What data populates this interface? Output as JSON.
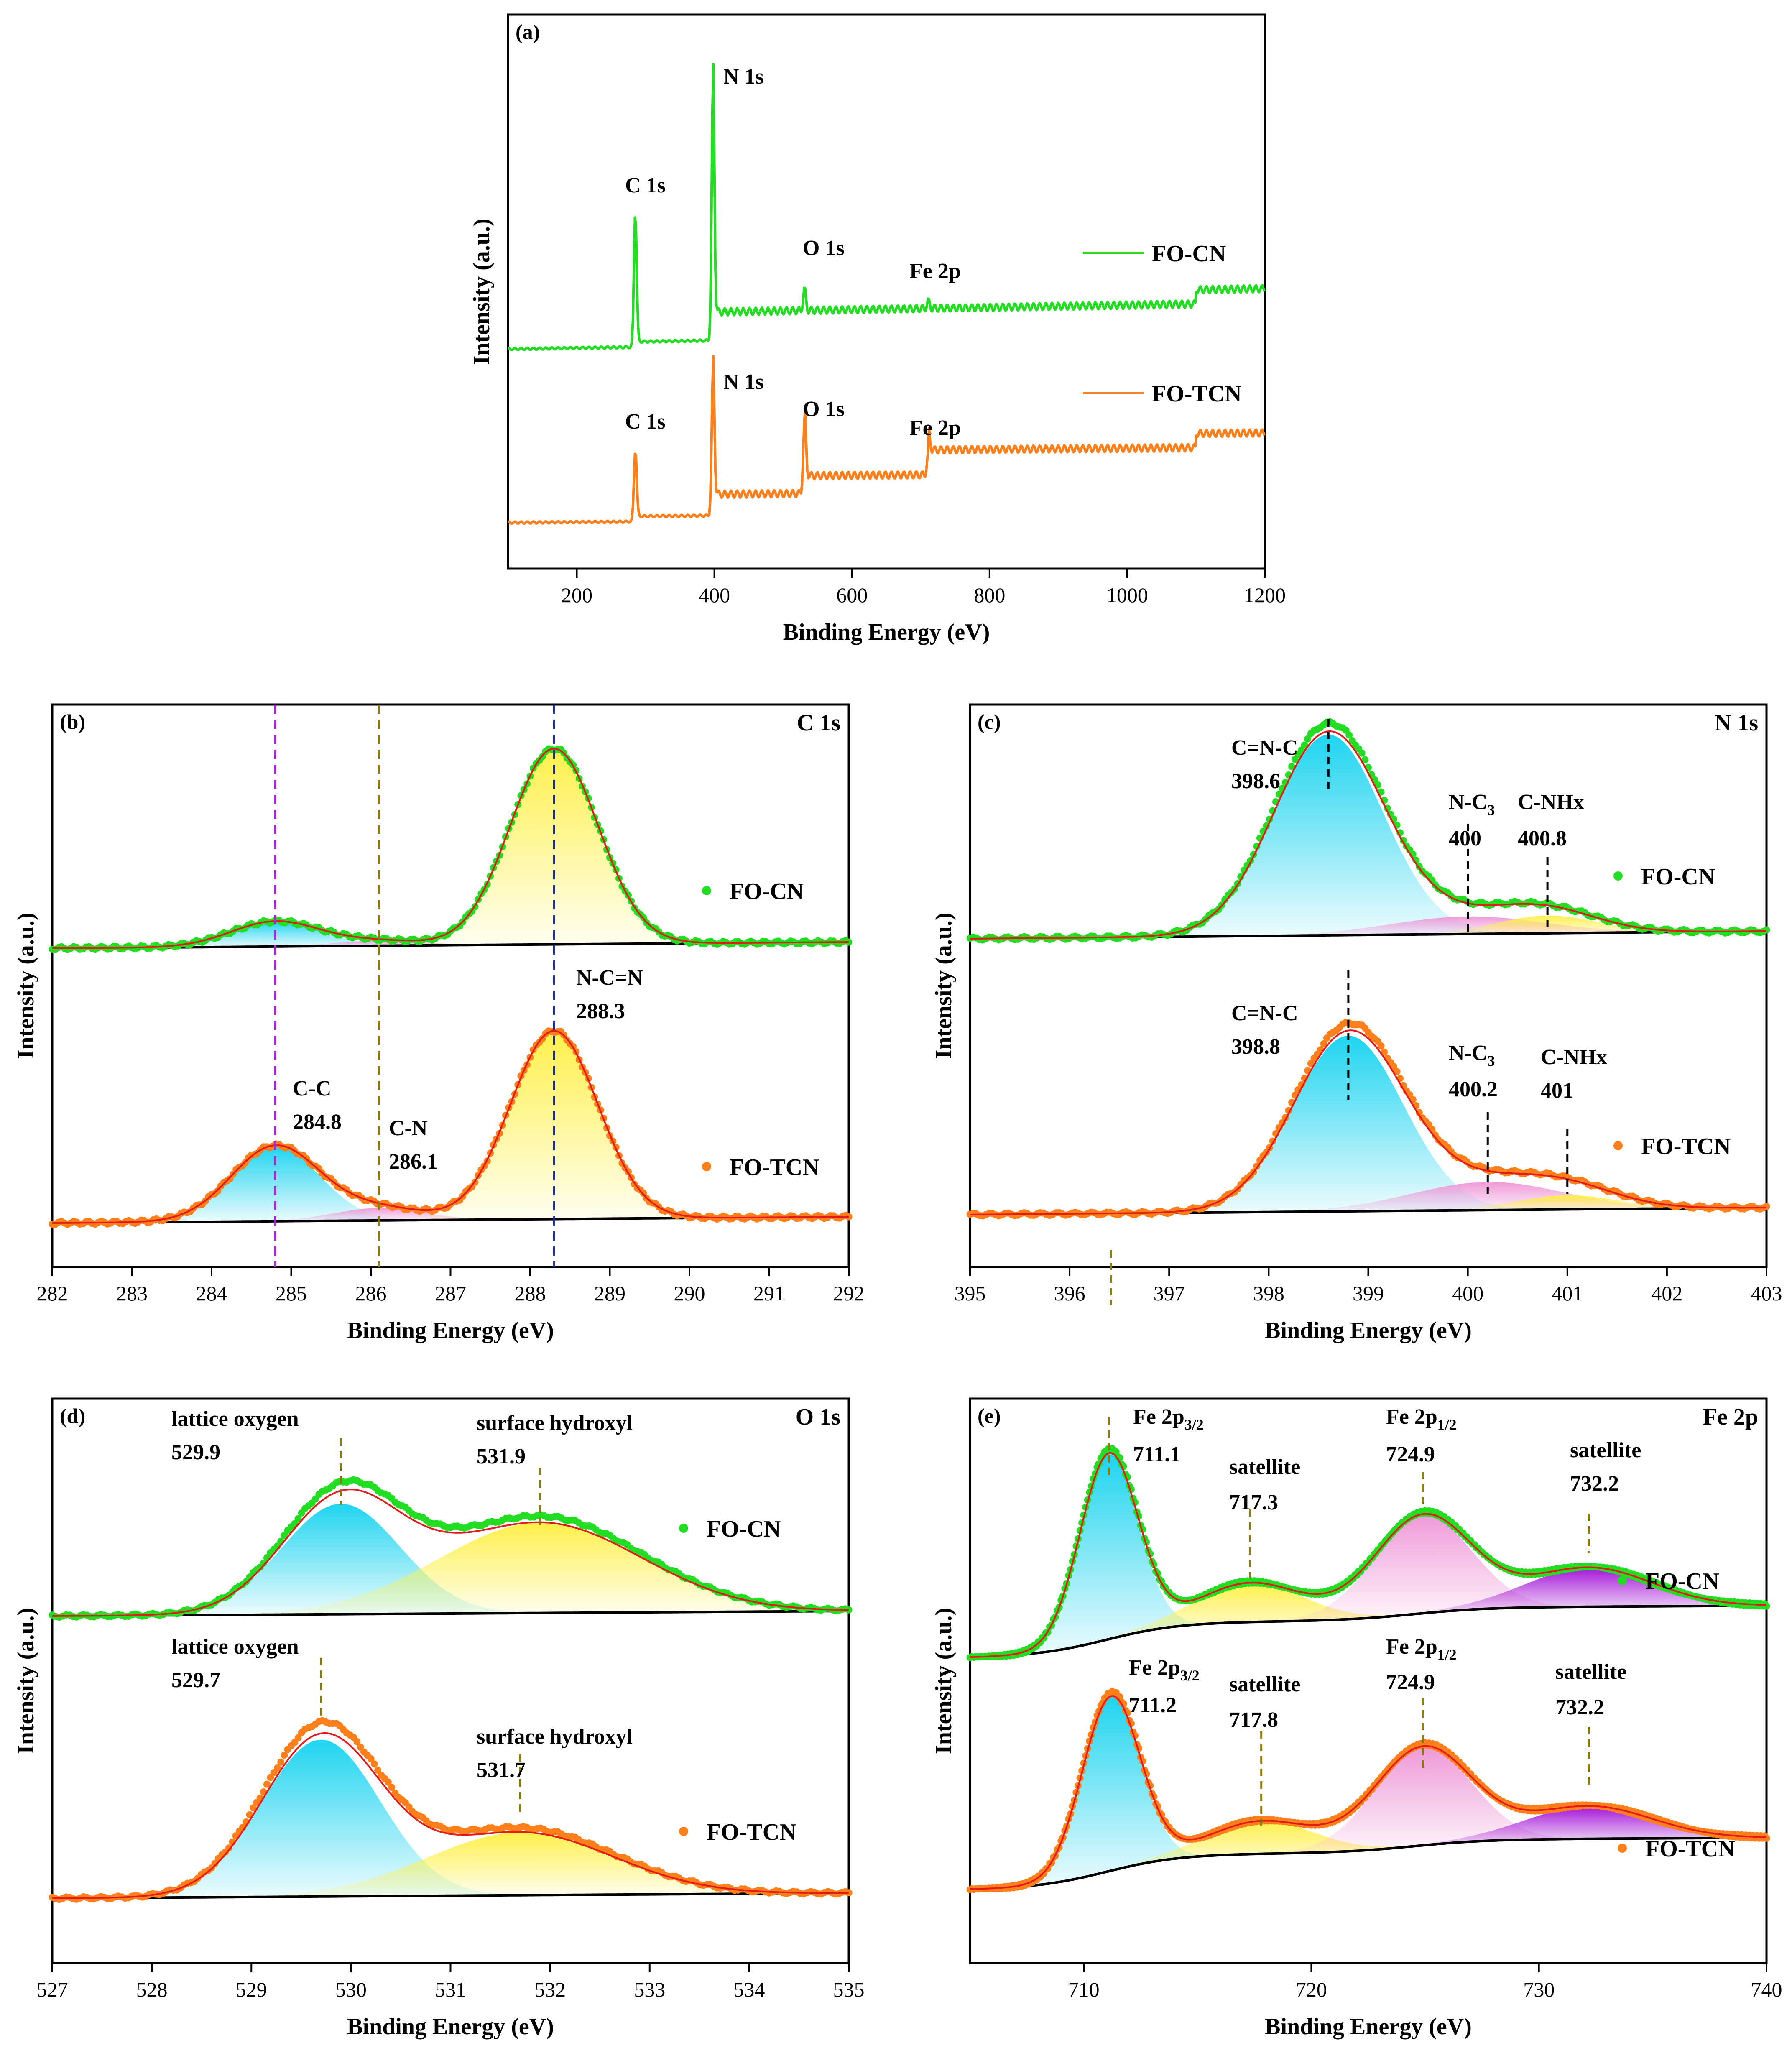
{
  "colors": {
    "green": "#22dd22",
    "orange": "#ff7f1a",
    "fit": "#e51a1a",
    "base": "#000000",
    "cyan": "#1ed4f0",
    "yellow": "#fff04a",
    "pink": "#ef9ad8",
    "purple": "#a416d8"
  },
  "chart_data": [
    {
      "id": "a",
      "type": "line",
      "panel_label": "(a)",
      "title": "",
      "xlabel": "Binding Energy (eV)",
      "ylabel": "Intensity (a.u.)",
      "xlim": [
        100,
        1200
      ],
      "xticks": [
        "200",
        "400",
        "600",
        "800",
        "1000",
        "1200"
      ],
      "series": [
        {
          "name": "FO-CN",
          "color": "green",
          "baseline": 0.0,
          "peaks": [
            {
              "label": "C 1s",
              "x": 285,
              "height": 0.38
            },
            {
              "label": "N 1s",
              "x": 398,
              "height": 0.72
            },
            {
              "label": "O 1s",
              "x": 531,
              "height": 0.06
            },
            {
              "label": "Fe 2p",
              "x": 711,
              "height": 0.02
            }
          ]
        },
        {
          "name": "FO-TCN",
          "color": "orange",
          "baseline": 0.0,
          "peaks": [
            {
              "label": "C 1s",
              "x": 285,
              "height": 0.2
            },
            {
              "label": "N 1s",
              "x": 398,
              "height": 0.4
            },
            {
              "label": "O 1s",
              "x": 531,
              "height": 0.2
            },
            {
              "label": "Fe 2p",
              "x": 711,
              "height": 0.06
            }
          ]
        }
      ],
      "annotations": [
        "C 1s",
        "N 1s",
        "O 1s",
        "Fe 2p",
        "C 1s",
        "N 1s",
        "O 1s",
        "Fe 2p"
      ]
    },
    {
      "id": "b",
      "type": "line",
      "panel_label": "(b)",
      "title": "C 1s",
      "xlabel": "Binding Energy (eV)",
      "ylabel": "Intensity (a.u.)",
      "xlim": [
        282,
        292
      ],
      "xticks": [
        "282",
        "283",
        "284",
        "285",
        "286",
        "287",
        "288",
        "289",
        "290",
        "291",
        "292"
      ],
      "series": [
        {
          "name": "FO-CN",
          "color": "green",
          "components": [
            {
              "label": "C-C",
              "center": 284.8,
              "fwhm": 1.3,
              "height": 0.1,
              "fill": "cyan"
            },
            {
              "label": "C-N",
              "center": 286.1,
              "fwhm": 1.3,
              "height": 0.02,
              "fill": "pink"
            },
            {
              "label": "N-C=N",
              "center": 288.3,
              "fwhm": 1.3,
              "height": 0.78,
              "fill": "yellow"
            }
          ]
        },
        {
          "name": "FO-TCN",
          "color": "orange",
          "components": [
            {
              "label": "C-C",
              "center": 284.8,
              "fwhm": 1.3,
              "height": 0.3,
              "fill": "cyan"
            },
            {
              "label": "C-N",
              "center": 286.1,
              "fwhm": 1.3,
              "height": 0.05,
              "fill": "pink"
            },
            {
              "label": "N-C=N",
              "center": 288.3,
              "fwhm": 1.3,
              "height": 0.75,
              "fill": "yellow"
            }
          ]
        }
      ],
      "reference_lines": [
        284.8,
        286.1,
        288.3
      ],
      "annotations": [
        "C-C",
        "284.8",
        "C-N",
        "286.1",
        "N-C=N",
        "288.3"
      ]
    },
    {
      "id": "c",
      "type": "line",
      "panel_label": "(c)",
      "title": "N 1s",
      "xlabel": "Binding Energy (eV)",
      "ylabel": "Intensity (a.u.)",
      "xlim": [
        395,
        403
      ],
      "xticks": [
        "395",
        "396",
        "397",
        "398",
        "399",
        "400",
        "401",
        "402",
        "403"
      ],
      "series": [
        {
          "name": "FO-CN",
          "color": "green",
          "components": [
            {
              "label": "C=N-C",
              "center": 398.6,
              "fwhm": 1.3,
              "height": 0.8,
              "fill": "cyan"
            },
            {
              "label": "N-C3",
              "center": 400.0,
              "fwhm": 1.8,
              "height": 0.07,
              "fill": "pink"
            },
            {
              "label": "C-NHx",
              "center": 400.8,
              "fwhm": 1.2,
              "height": 0.07,
              "fill": "yellow"
            }
          ]
        },
        {
          "name": "FO-TCN",
          "color": "orange",
          "components": [
            {
              "label": "C=N-C",
              "center": 398.8,
              "fwhm": 1.3,
              "height": 0.75,
              "fill": "cyan"
            },
            {
              "label": "N-C3",
              "center": 400.2,
              "fwhm": 1.8,
              "height": 0.12,
              "fill": "pink"
            },
            {
              "label": "C-NHx",
              "center": 401.0,
              "fwhm": 1.2,
              "height": 0.06,
              "fill": "yellow"
            }
          ]
        }
      ],
      "annotations": [
        "C=N-C",
        "398.6",
        "N-C3",
        "400",
        "C-NHx",
        "400.8",
        "C=N-C",
        "398.8",
        "N-C3",
        "400.2",
        "C-NHx",
        "401"
      ]
    },
    {
      "id": "d",
      "type": "line",
      "panel_label": "(d)",
      "title": "O 1s",
      "xlabel": "Binding Energy (eV)",
      "ylabel": "Intensity (a.u.)",
      "xlim": [
        527,
        535
      ],
      "xticks": [
        "527",
        "528",
        "529",
        "530",
        "531",
        "532",
        "533",
        "534",
        "535"
      ],
      "series": [
        {
          "name": "FO-CN",
          "color": "green",
          "components": [
            {
              "label": "lattice oxygen",
              "center": 529.9,
              "fwhm": 1.4,
              "height": 0.55,
              "fill": "cyan"
            },
            {
              "label": "surface hydroxyl",
              "center": 531.9,
              "fwhm": 2.4,
              "height": 0.45,
              "fill": "yellow"
            }
          ]
        },
        {
          "name": "FO-TCN",
          "color": "orange",
          "components": [
            {
              "label": "lattice oxygen",
              "center": 529.7,
              "fwhm": 1.4,
              "height": 0.75,
              "fill": "cyan"
            },
            {
              "label": "surface hydroxyl",
              "center": 531.7,
              "fwhm": 2.2,
              "height": 0.3,
              "fill": "yellow"
            }
          ]
        }
      ],
      "annotations": [
        "lattice oxygen",
        "529.9",
        "surface hydroxyl",
        "531.9",
        "lattice oxygen",
        "529.7",
        "surface hydroxyl",
        "531.7"
      ]
    },
    {
      "id": "e",
      "type": "line",
      "panel_label": "(e)",
      "title": "Fe 2p",
      "xlabel": "Binding Energy (eV)",
      "ylabel": "Intensity (a.u.)",
      "xlim": [
        705,
        740
      ],
      "xticks": [
        "710",
        "720",
        "730",
        "740"
      ],
      "series": [
        {
          "name": "FO-CN",
          "color": "green",
          "components": [
            {
              "label": "Fe 2p3/2",
              "center": 711.1,
              "fwhm": 3.0,
              "height": 0.85,
              "fill": "cyan"
            },
            {
              "label": "satellite",
              "center": 717.3,
              "fwhm": 5.5,
              "height": 0.18,
              "fill": "yellow"
            },
            {
              "label": "Fe 2p1/2",
              "center": 724.9,
              "fwhm": 5.0,
              "height": 0.45,
              "fill": "pink"
            },
            {
              "label": "satellite",
              "center": 732.2,
              "fwhm": 6.5,
              "height": 0.18,
              "fill": "purple"
            }
          ]
        },
        {
          "name": "FO-TCN",
          "color": "orange",
          "components": [
            {
              "label": "Fe 2p3/2",
              "center": 711.2,
              "fwhm": 3.0,
              "height": 0.8,
              "fill": "cyan"
            },
            {
              "label": "satellite",
              "center": 717.8,
              "fwhm": 5.5,
              "height": 0.15,
              "fill": "yellow"
            },
            {
              "label": "Fe 2p1/2",
              "center": 724.9,
              "fwhm": 5.0,
              "height": 0.45,
              "fill": "pink"
            },
            {
              "label": "satellite",
              "center": 732.2,
              "fwhm": 6.5,
              "height": 0.15,
              "fill": "purple"
            }
          ]
        }
      ],
      "annotations": [
        "Fe 2p3/2",
        "711.1",
        "satellite",
        "717.3",
        "Fe 2p1/2",
        "724.9",
        "satellite",
        "732.2",
        "Fe 2p3/2",
        "711.2",
        "satellite",
        "717.8",
        "Fe 2p1/2",
        "724.9",
        "satellite",
        "732.2"
      ]
    }
  ]
}
